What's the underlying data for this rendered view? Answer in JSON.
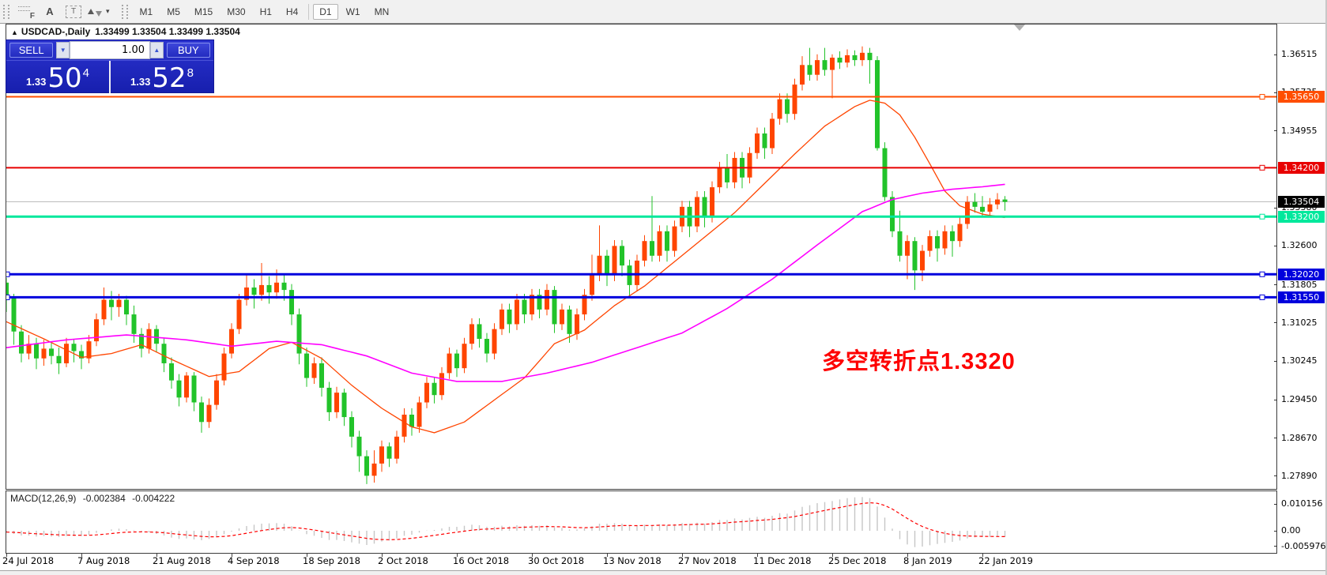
{
  "toolbar": {
    "tools": [
      {
        "name": "fibonacci-tool",
        "label": "F"
      },
      {
        "name": "text-tool",
        "label": "A"
      },
      {
        "name": "text-label-tool",
        "label": "T"
      },
      {
        "name": "arrows-tool",
        "label": ""
      }
    ],
    "timeframes": [
      "M1",
      "M5",
      "M15",
      "M30",
      "H1",
      "H4",
      "D1",
      "W1",
      "MN"
    ],
    "active_timeframe": "D1"
  },
  "header": {
    "title_arrow": "▲",
    "chart_title": "USDCAD-,Daily",
    "ohlc_readout": "1.33499 1.33504 1.33499 1.33504"
  },
  "trade_panel": {
    "sell_label": "SELL",
    "buy_label": "BUY",
    "volume": "1.00",
    "sell_price_small": "1.33",
    "sell_price_big": "50",
    "sell_price_sup": "4",
    "buy_price_small": "1.33",
    "buy_price_big": "52",
    "buy_price_sup": "8",
    "panel_color": "#2028c8"
  },
  "annotation": {
    "text": "多空转折点1.3320",
    "color": "#fe0000"
  },
  "macd_panel": {
    "header_label": "MACD(12,26,9)",
    "value1": "-0.002384",
    "value2": "-0.004222",
    "ticks": [
      {
        "v": 0.010156,
        "label": "0.010156"
      },
      {
        "v": 0.0,
        "label": "0.00"
      },
      {
        "v": -0.005976,
        "label": "-0.005976"
      }
    ],
    "hist_color": "#c6c6c6",
    "signal_color": "#ff0000"
  },
  "chart_data": {
    "type": "candlestick",
    "symbol": "USDCAD-",
    "timeframe": "Daily",
    "current_price": {
      "value": 1.33504,
      "label": "1.33504",
      "line_color": "#b8b8b8",
      "badge_color": "#000000"
    },
    "up_color": "#ff4500",
    "down_color": "#22c32a",
    "price_axis": {
      "ticks": [
        {
          "v": 1.36515,
          "label": "1.36515"
        },
        {
          "v": 1.34955,
          "label": "1.34955"
        },
        {
          "v": 1.326,
          "label": "1.32600"
        },
        {
          "v": 1.31805,
          "label": "1.31805"
        },
        {
          "v": 1.31025,
          "label": "1.31025"
        },
        {
          "v": 1.30245,
          "label": "1.30245"
        },
        {
          "v": 1.2945,
          "label": "1.29450"
        },
        {
          "v": 1.2867,
          "label": "1.28670"
        },
        {
          "v": 1.2789,
          "label": "1.27890"
        }
      ],
      "partial_ticks": [
        {
          "v": 1.35735,
          "label": "1.35735"
        },
        {
          "v": 1.3338,
          "label": "1.33380"
        }
      ]
    },
    "hlines": [
      {
        "price": 1.3565,
        "label": "1.35650",
        "color": "#ff4e00",
        "width": 2,
        "left_handle": false
      },
      {
        "price": 1.342,
        "label": "1.34200",
        "color": "#e80000",
        "width": 2,
        "left_handle": false
      },
      {
        "price": 1.332,
        "label": "1.33200",
        "color": "#00e89c",
        "width": 3,
        "left_handle": false
      },
      {
        "price": 1.3202,
        "label": "1.32020",
        "color": "#0000dd",
        "width": 3,
        "left_handle": true
      },
      {
        "price": 1.3155,
        "label": "1.31550",
        "color": "#0000dd",
        "width": 3,
        "left_handle": true
      }
    ],
    "date_labels": [
      "24 Jul 2018",
      "7 Aug 2018",
      "21 Aug 2018",
      "4 Sep 2018",
      "18 Sep 2018",
      "2 Oct 2018",
      "16 Oct 2018",
      "30 Oct 2018",
      "13 Nov 2018",
      "27 Nov 2018",
      "11 Dec 2018",
      "25 Dec 2018",
      "8 Jan 2019",
      "22 Jan 2019"
    ],
    "ma_fast": {
      "color": "#ff4500",
      "keypoints": [
        [
          0,
          1.3105
        ],
        [
          5,
          1.307
        ],
        [
          10,
          1.3032
        ],
        [
          14,
          1.304
        ],
        [
          18,
          1.3058
        ],
        [
          22,
          1.3028
        ],
        [
          27,
          1.2993
        ],
        [
          31,
          1.3003
        ],
        [
          35,
          1.305
        ],
        [
          38,
          1.3063
        ],
        [
          42,
          1.303
        ],
        [
          46,
          1.2975
        ],
        [
          50,
          1.2928
        ],
        [
          54,
          1.289
        ],
        [
          57,
          1.2878
        ],
        [
          61,
          1.29
        ],
        [
          65,
          1.2945
        ],
        [
          69,
          1.299
        ],
        [
          73,
          1.306
        ],
        [
          77,
          1.3088
        ],
        [
          81,
          1.3138
        ],
        [
          85,
          1.3178
        ],
        [
          89,
          1.3228
        ],
        [
          93,
          1.3278
        ],
        [
          97,
          1.3328
        ],
        [
          101,
          1.3388
        ],
        [
          105,
          1.3448
        ],
        [
          109,
          1.3505
        ],
        [
          113,
          1.3545
        ],
        [
          115,
          1.3558
        ],
        [
          117,
          1.3552
        ],
        [
          119,
          1.3528
        ],
        [
          121,
          1.3482
        ],
        [
          123,
          1.3428
        ],
        [
          125,
          1.3372
        ],
        [
          127,
          1.3342
        ],
        [
          130,
          1.3325
        ],
        [
          133,
          1.3318
        ]
      ]
    },
    "ma_slow": {
      "color": "#ff00ff",
      "keypoints": [
        [
          0,
          1.3052
        ],
        [
          8,
          1.3068
        ],
        [
          16,
          1.3078
        ],
        [
          24,
          1.3068
        ],
        [
          30,
          1.3055
        ],
        [
          36,
          1.3065
        ],
        [
          42,
          1.3058
        ],
        [
          48,
          1.3035
        ],
        [
          54,
          1.3
        ],
        [
          60,
          1.2983
        ],
        [
          66,
          1.2983
        ],
        [
          72,
          1.3
        ],
        [
          78,
          1.3022
        ],
        [
          84,
          1.3052
        ],
        [
          90,
          1.3082
        ],
        [
          96,
          1.3132
        ],
        [
          102,
          1.3192
        ],
        [
          108,
          1.3262
        ],
        [
          114,
          1.333
        ],
        [
          118,
          1.3355
        ],
        [
          122,
          1.3368
        ],
        [
          126,
          1.3376
        ],
        [
          130,
          1.3381
        ],
        [
          133,
          1.3386
        ]
      ]
    },
    "candles": [
      [
        1.3185,
        1.3195,
        1.3125,
        1.3155
      ],
      [
        1.3155,
        1.3162,
        1.3058,
        1.3085
      ],
      [
        1.3085,
        1.3098,
        1.3022,
        1.304
      ],
      [
        1.304,
        1.3078,
        1.3028,
        1.306
      ],
      [
        1.306,
        1.3072,
        1.3008,
        1.303
      ],
      [
        1.303,
        1.3068,
        1.3015,
        1.305
      ],
      [
        1.305,
        1.3062,
        1.3018,
        1.3035
      ],
      [
        1.3035,
        1.3052,
        1.2998,
        1.302
      ],
      [
        1.302,
        1.3072,
        1.3012,
        1.306
      ],
      [
        1.306,
        1.307,
        1.3022,
        1.3045
      ],
      [
        1.3045,
        1.3058,
        1.3008,
        1.303
      ],
      [
        1.303,
        1.3078,
        1.302,
        1.3065
      ],
      [
        1.3065,
        1.3122,
        1.3055,
        1.311
      ],
      [
        1.311,
        1.3175,
        1.3098,
        1.315
      ],
      [
        1.315,
        1.3168,
        1.3108,
        1.3135
      ],
      [
        1.3135,
        1.3162,
        1.3115,
        1.315
      ],
      [
        1.315,
        1.3158,
        1.3098,
        1.312
      ],
      [
        1.312,
        1.3138,
        1.3062,
        1.308
      ],
      [
        1.308,
        1.3092,
        1.3032,
        1.305
      ],
      [
        1.305,
        1.3102,
        1.304,
        1.309
      ],
      [
        1.309,
        1.3098,
        1.3042,
        1.306
      ],
      [
        1.306,
        1.3072,
        1.3002,
        1.302
      ],
      [
        1.302,
        1.3032,
        1.2968,
        1.2985
      ],
      [
        1.2985,
        1.2998,
        1.2932,
        1.295
      ],
      [
        1.295,
        1.3002,
        1.294,
        1.2995
      ],
      [
        1.2995,
        1.3002,
        1.2922,
        1.294
      ],
      [
        1.294,
        1.2952,
        1.2878,
        1.29
      ],
      [
        1.29,
        1.2948,
        1.2888,
        1.2935
      ],
      [
        1.2935,
        1.2998,
        1.2925,
        1.2985
      ],
      [
        1.2985,
        1.3052,
        1.2975,
        1.304
      ],
      [
        1.304,
        1.3102,
        1.303,
        1.309
      ],
      [
        1.309,
        1.3162,
        1.308,
        1.315
      ],
      [
        1.315,
        1.3202,
        1.3138,
        1.3175
      ],
      [
        1.3175,
        1.3192,
        1.3132,
        1.316
      ],
      [
        1.316,
        1.3225,
        1.3148,
        1.318
      ],
      [
        1.318,
        1.3198,
        1.3142,
        1.3165
      ],
      [
        1.3165,
        1.3212,
        1.3152,
        1.3185
      ],
      [
        1.3185,
        1.3202,
        1.3148,
        1.317
      ],
      [
        1.317,
        1.3182,
        1.3098,
        1.312
      ],
      [
        1.312,
        1.3132,
        1.3018,
        1.304
      ],
      [
        1.304,
        1.3052,
        1.2972,
        1.299
      ],
      [
        1.299,
        1.3032,
        1.2978,
        1.302
      ],
      [
        1.302,
        1.3032,
        1.2952,
        1.297
      ],
      [
        1.297,
        1.2982,
        1.2902,
        1.292
      ],
      [
        1.292,
        1.2972,
        1.2908,
        1.296
      ],
      [
        1.296,
        1.2968,
        1.2892,
        1.291
      ],
      [
        1.291,
        1.2922,
        1.2848,
        1.287
      ],
      [
        1.287,
        1.2882,
        1.2798,
        1.283
      ],
      [
        1.283,
        1.2842,
        1.2773,
        1.279
      ],
      [
        1.279,
        1.2842,
        1.2776,
        1.2815
      ],
      [
        1.2815,
        1.2862,
        1.2798,
        1.285
      ],
      [
        1.285,
        1.2858,
        1.2808,
        1.2825
      ],
      [
        1.2825,
        1.2882,
        1.2815,
        1.287
      ],
      [
        1.287,
        1.2928,
        1.2858,
        1.2915
      ],
      [
        1.2915,
        1.2928,
        1.2872,
        1.289
      ],
      [
        1.289,
        1.2952,
        1.2878,
        1.294
      ],
      [
        1.294,
        1.2992,
        1.2928,
        1.298
      ],
      [
        1.298,
        1.2992,
        1.2938,
        1.2955
      ],
      [
        1.2955,
        1.3012,
        1.2945,
        1.3
      ],
      [
        1.3,
        1.3052,
        1.2988,
        1.304
      ],
      [
        1.304,
        1.3048,
        1.2992,
        1.301
      ],
      [
        1.301,
        1.3072,
        1.3,
        1.306
      ],
      [
        1.306,
        1.3112,
        1.3048,
        1.31
      ],
      [
        1.31,
        1.3112,
        1.3052,
        1.307
      ],
      [
        1.307,
        1.3082,
        1.3022,
        1.304
      ],
      [
        1.304,
        1.3102,
        1.3028,
        1.309
      ],
      [
        1.309,
        1.3142,
        1.3078,
        1.313
      ],
      [
        1.313,
        1.3142,
        1.3082,
        1.31
      ],
      [
        1.31,
        1.3162,
        1.3088,
        1.315
      ],
      [
        1.315,
        1.3162,
        1.3102,
        1.312
      ],
      [
        1.312,
        1.3172,
        1.3108,
        1.316
      ],
      [
        1.316,
        1.3172,
        1.3112,
        1.313
      ],
      [
        1.313,
        1.3182,
        1.3118,
        1.317
      ],
      [
        1.317,
        1.3178,
        1.3082,
        1.31
      ],
      [
        1.31,
        1.3142,
        1.3088,
        1.313
      ],
      [
        1.313,
        1.3138,
        1.3062,
        1.308
      ],
      [
        1.308,
        1.3132,
        1.3068,
        1.312
      ],
      [
        1.312,
        1.3172,
        1.3108,
        1.316
      ],
      [
        1.316,
        1.3242,
        1.3148,
        1.32
      ],
      [
        1.32,
        1.3302,
        1.3188,
        1.324
      ],
      [
        1.324,
        1.3252,
        1.3178,
        1.32
      ],
      [
        1.32,
        1.3272,
        1.3188,
        1.326
      ],
      [
        1.326,
        1.3272,
        1.3198,
        1.322
      ],
      [
        1.322,
        1.3232,
        1.3158,
        1.318
      ],
      [
        1.318,
        1.3242,
        1.3168,
        1.323
      ],
      [
        1.323,
        1.3282,
        1.3218,
        1.327
      ],
      [
        1.327,
        1.3362,
        1.3228,
        1.324
      ],
      [
        1.324,
        1.3302,
        1.3228,
        1.329
      ],
      [
        1.329,
        1.3302,
        1.3228,
        1.325
      ],
      [
        1.325,
        1.3312,
        1.3238,
        1.33
      ],
      [
        1.33,
        1.3352,
        1.3288,
        1.334
      ],
      [
        1.334,
        1.3352,
        1.3278,
        1.33
      ],
      [
        1.33,
        1.3372,
        1.3288,
        1.336
      ],
      [
        1.336,
        1.3372,
        1.3298,
        1.332
      ],
      [
        1.332,
        1.3392,
        1.3308,
        1.338
      ],
      [
        1.338,
        1.3432,
        1.3368,
        1.342
      ],
      [
        1.342,
        1.3448,
        1.3378,
        1.339
      ],
      [
        1.339,
        1.3452,
        1.3378,
        1.344
      ],
      [
        1.344,
        1.3452,
        1.3378,
        1.34
      ],
      [
        1.34,
        1.3462,
        1.3388,
        1.345
      ],
      [
        1.345,
        1.3502,
        1.3438,
        1.349
      ],
      [
        1.349,
        1.3502,
        1.3438,
        1.346
      ],
      [
        1.346,
        1.3532,
        1.3448,
        1.352
      ],
      [
        1.352,
        1.3572,
        1.3508,
        1.356
      ],
      [
        1.356,
        1.3572,
        1.3512,
        1.353
      ],
      [
        1.353,
        1.3602,
        1.3518,
        1.359
      ],
      [
        1.359,
        1.3648,
        1.3578,
        1.363
      ],
      [
        1.363,
        1.3665,
        1.3598,
        1.361
      ],
      [
        1.361,
        1.3652,
        1.3598,
        1.364
      ],
      [
        1.364,
        1.3665,
        1.3608,
        1.362
      ],
      [
        1.362,
        1.3652,
        1.3562,
        1.3645
      ],
      [
        1.3645,
        1.3658,
        1.3622,
        1.3635
      ],
      [
        1.3635,
        1.3662,
        1.3625,
        1.365
      ],
      [
        1.365,
        1.366,
        1.3628,
        1.364
      ],
      [
        1.364,
        1.3668,
        1.3628,
        1.3655
      ],
      [
        1.3655,
        1.3665,
        1.3592,
        1.364
      ],
      [
        1.364,
        1.3648,
        1.3455,
        1.346
      ],
      [
        1.346,
        1.3472,
        1.3352,
        1.336
      ],
      [
        1.336,
        1.3372,
        1.3278,
        1.329
      ],
      [
        1.329,
        1.3332,
        1.3228,
        1.324
      ],
      [
        1.324,
        1.3282,
        1.3192,
        1.327
      ],
      [
        1.327,
        1.3278,
        1.317,
        1.321
      ],
      [
        1.321,
        1.3262,
        1.3188,
        1.325
      ],
      [
        1.325,
        1.3292,
        1.3238,
        1.328
      ],
      [
        1.328,
        1.3292,
        1.3228,
        1.3255
      ],
      [
        1.3255,
        1.3302,
        1.3242,
        1.329
      ],
      [
        1.329,
        1.3302,
        1.3238,
        1.327
      ],
      [
        1.327,
        1.3322,
        1.3258,
        1.3305
      ],
      [
        1.3305,
        1.3362,
        1.3295,
        1.335
      ],
      [
        1.335,
        1.3368,
        1.3328,
        1.334
      ],
      [
        1.334,
        1.3362,
        1.3318,
        1.333
      ],
      [
        1.333,
        1.3358,
        1.332,
        1.3345
      ],
      [
        1.3345,
        1.3368,
        1.3335,
        1.3355
      ],
      [
        1.3355,
        1.3362,
        1.3332,
        1.335
      ]
    ],
    "macd_hist": [
      -0.0005,
      -0.0012,
      -0.0018,
      -0.0018,
      -0.0022,
      -0.002,
      -0.0022,
      -0.0024,
      -0.002,
      -0.0019,
      -0.002,
      -0.0016,
      -0.0008,
      0.0,
      0.0005,
      0.0008,
      0.0006,
      0.0002,
      -0.0004,
      -0.0006,
      -0.0012,
      -0.0018,
      -0.0026,
      -0.0031,
      -0.0029,
      -0.0033,
      -0.0036,
      -0.0031,
      -0.0023,
      -0.0013,
      -0.0003,
      0.0009,
      0.0018,
      0.0023,
      0.0027,
      0.0028,
      0.0029,
      0.0027,
      0.0017,
      0.0001,
      -0.0013,
      -0.0019,
      -0.0027,
      -0.0035,
      -0.0035,
      -0.0039,
      -0.0044,
      -0.0049,
      -0.0054,
      -0.0049,
      -0.0041,
      -0.0037,
      -0.0029,
      -0.0019,
      -0.0015,
      -0.0007,
      0.0001,
      0.0003,
      0.0009,
      0.0015,
      0.0015,
      0.0019,
      0.0023,
      0.0021,
      0.0015,
      0.0015,
      0.0019,
      0.0017,
      0.0021,
      0.0019,
      0.0021,
      0.0019,
      0.0021,
      0.0013,
      0.0011,
      0.0005,
      0.0005,
      0.0009,
      0.0017,
      0.0027,
      0.0027,
      0.0029,
      0.0027,
      0.0019,
      0.0019,
      0.0023,
      0.0021,
      0.0025,
      0.0021,
      0.0025,
      0.0029,
      0.0027,
      0.0031,
      0.0027,
      0.0033,
      0.0041,
      0.0041,
      0.0047,
      0.0043,
      0.0049,
      0.0053,
      0.0049,
      0.0057,
      0.0067,
      0.0065,
      0.0077,
      0.0091,
      0.0097,
      0.0105,
      0.0109,
      0.0113,
      0.0119,
      0.0124,
      0.0127,
      0.0128,
      0.0124,
      0.0092,
      0.005,
      0.0008,
      -0.0032,
      -0.0052,
      -0.0062,
      -0.006,
      -0.0055,
      -0.005,
      -0.0046,
      -0.0042,
      -0.0037,
      -0.0029,
      -0.0025,
      -0.0024,
      -0.0024,
      -0.0023,
      -0.0024
    ]
  }
}
